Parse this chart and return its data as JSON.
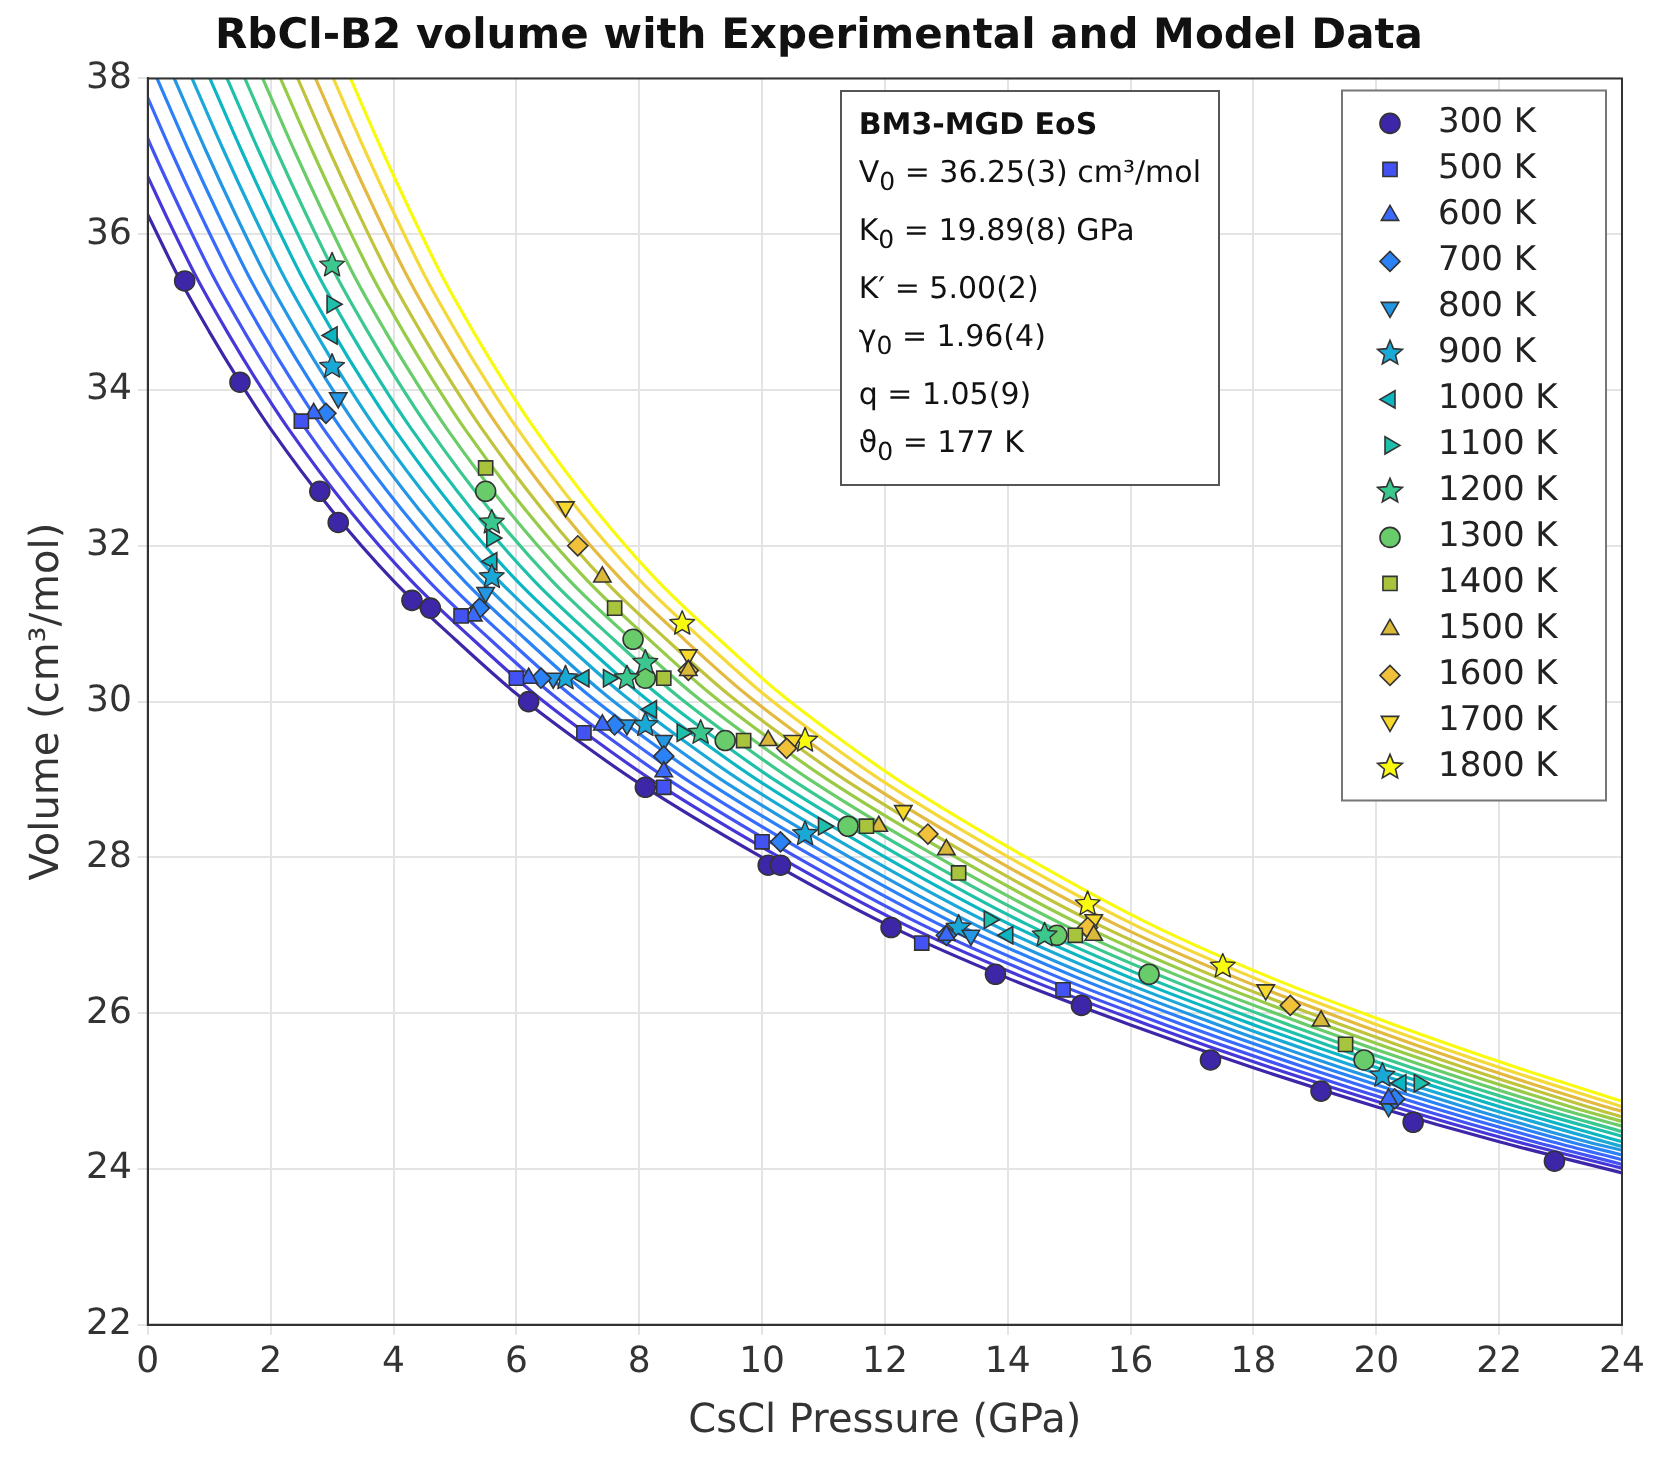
{
  "chart_data": {
    "type": "scatter",
    "title": "RbCl-B2 volume with Experimental and Model Data",
    "xlabel": "CsCl Pressure (GPa)",
    "ylabel": "Volume (cm³/mol)",
    "xlim": [
      0,
      24
    ],
    "ylim": [
      22,
      38
    ],
    "xticks": [
      0,
      2,
      4,
      6,
      8,
      10,
      12,
      14,
      16,
      18,
      20,
      22,
      24
    ],
    "yticks": [
      22,
      24,
      26,
      28,
      30,
      32,
      34,
      36,
      38
    ],
    "grid": true,
    "legend": "top right",
    "annotations": [
      "BM3-MGD EoS",
      "V$_{0}$ = 36.25(3) cm³/mol",
      "K$_{0}$ = 19.89(8) GPa",
      "K′ = 5.00(2)",
      "γ$_{0}$ = 1.96(4)",
      "q = 1.05(9)",
      "ϑ$_{0}$ = 177 K"
    ],
    "series": [
      {
        "type": "line",
        "marker": "none",
        "color": "#3e26a8",
        "x": [
          0,
          0.5,
          1,
          1.5,
          2,
          3,
          4,
          5,
          6,
          7,
          8,
          10,
          12,
          14,
          16,
          18,
          20,
          22,
          24
        ],
        "values": [
          36.25,
          35.45,
          34.75,
          34.1,
          33.5,
          32.45,
          31.55,
          30.8,
          30.1,
          29.5,
          28.95,
          28.0,
          27.15,
          26.45,
          25.85,
          25.3,
          24.8,
          24.35,
          23.95
        ]
      },
      {
        "type": "line",
        "marker": "none",
        "color": "#4638d8",
        "x": [
          0,
          0.29,
          0.79,
          1.29,
          1.79,
          2.29,
          3.29,
          4.29,
          5.29,
          6.29,
          7.29,
          8.29,
          10.29,
          12.29,
          14.29,
          16.29,
          18.29,
          20.29,
          22.29,
          24
        ],
        "values": [
          36.74,
          36.25,
          35.45,
          34.75,
          34.1,
          33.5,
          32.45,
          31.55,
          30.8,
          30.1,
          29.5,
          28.95,
          28.0,
          27.15,
          26.45,
          25.85,
          25.3,
          24.8,
          24.35,
          24.01
        ]
      },
      {
        "type": "line",
        "marker": "none",
        "color": "#4352f3",
        "x": [
          0,
          0.07,
          0.57,
          1.07,
          1.57,
          2.07,
          2.57,
          3.57,
          4.57,
          5.57,
          6.57,
          7.57,
          8.57,
          10.57,
          12.57,
          14.57,
          16.57,
          18.57,
          20.57,
          22.57,
          24
        ],
        "values": [
          37.23,
          37.1,
          36.25,
          35.45,
          34.75,
          34.1,
          33.5,
          32.45,
          31.55,
          30.8,
          30.1,
          29.5,
          28.95,
          28.0,
          27.15,
          26.45,
          25.85,
          25.3,
          24.8,
          24.35,
          24.06
        ]
      },
      {
        "type": "line",
        "marker": "none",
        "color": "#3a6afd",
        "x": [
          0,
          0.36,
          0.86,
          1.36,
          1.86,
          2.36,
          2.86,
          3.86,
          4.86,
          5.86,
          6.86,
          7.86,
          8.86,
          10.86,
          12.86,
          14.86,
          16.86,
          18.86,
          20.86,
          22.86,
          24
        ],
        "values": [
          37.75,
          37.1,
          36.25,
          35.45,
          34.75,
          34.1,
          33.5,
          32.45,
          31.55,
          30.8,
          30.1,
          29.5,
          28.95,
          28.0,
          27.15,
          26.45,
          25.85,
          25.3,
          24.8,
          24.35,
          24.12
        ]
      },
      {
        "type": "line",
        "marker": "none",
        "color": "#2b82f6",
        "x": [
          0.15,
          0.65,
          1.15,
          1.65,
          2.15,
          2.65,
          3.15,
          4.15,
          5.15,
          6.15,
          7.15,
          8.15,
          9.15,
          11.15,
          13.15,
          15.15,
          17.15,
          19.15,
          21.15,
          23.15,
          24
        ],
        "values": [
          38.0,
          37.1,
          36.25,
          35.45,
          34.75,
          34.1,
          33.5,
          32.45,
          31.55,
          30.8,
          30.1,
          29.5,
          28.95,
          28.0,
          27.15,
          26.45,
          25.85,
          25.3,
          24.8,
          24.35,
          24.18
        ]
      },
      {
        "type": "line",
        "marker": "none",
        "color": "#2397e3",
        "x": [
          0.43,
          0.93,
          1.43,
          1.93,
          2.43,
          2.93,
          3.43,
          4.43,
          5.43,
          6.43,
          7.43,
          8.43,
          9.43,
          11.43,
          13.43,
          15.43,
          17.43,
          19.43,
          21.43,
          23.43,
          24
        ],
        "values": [
          38.0,
          37.1,
          36.25,
          35.45,
          34.75,
          34.1,
          33.5,
          32.45,
          31.55,
          30.8,
          30.1,
          29.5,
          28.95,
          28.0,
          27.15,
          26.45,
          25.85,
          25.3,
          24.8,
          24.35,
          24.24
        ]
      },
      {
        "type": "line",
        "marker": "none",
        "color": "#1aa9d6",
        "x": [
          0.72,
          1.22,
          1.72,
          2.22,
          2.72,
          3.22,
          3.72,
          4.72,
          5.72,
          6.72,
          7.72,
          8.72,
          9.72,
          11.72,
          13.72,
          15.72,
          17.72,
          19.72,
          21.72,
          23.72,
          24
        ],
        "values": [
          38.0,
          37.1,
          36.25,
          35.45,
          34.75,
          34.1,
          33.5,
          32.45,
          31.55,
          30.8,
          30.1,
          29.5,
          28.95,
          28.0,
          27.15,
          26.45,
          25.85,
          25.3,
          24.8,
          24.35,
          24.29
        ]
      },
      {
        "type": "line",
        "marker": "none",
        "color": "#0bb6c2",
        "x": [
          1.01,
          1.51,
          2.01,
          2.51,
          3.01,
          3.51,
          4.01,
          5.01,
          6.01,
          7.01,
          8.01,
          9.01,
          10.01,
          12.01,
          14.01,
          16.01,
          18.01,
          20.01,
          22.01,
          24
        ],
        "values": [
          38.0,
          37.1,
          36.25,
          35.45,
          34.75,
          34.1,
          33.5,
          32.45,
          31.55,
          30.8,
          30.1,
          29.5,
          28.95,
          28.0,
          27.15,
          26.45,
          25.85,
          25.3,
          24.8,
          24.35
        ]
      },
      {
        "type": "line",
        "marker": "none",
        "color": "#1ec0ac",
        "x": [
          1.29,
          1.79,
          2.29,
          2.79,
          3.29,
          3.79,
          4.29,
          5.29,
          6.29,
          7.29,
          8.29,
          9.29,
          10.29,
          12.29,
          14.29,
          16.29,
          18.29,
          20.29,
          22.29,
          24
        ],
        "values": [
          38.0,
          37.1,
          36.25,
          35.45,
          34.75,
          34.1,
          33.5,
          32.45,
          31.55,
          30.8,
          30.1,
          29.5,
          28.95,
          28.0,
          27.15,
          26.45,
          25.85,
          25.3,
          24.8,
          24.42
        ]
      },
      {
        "type": "line",
        "marker": "none",
        "color": "#3bc88f",
        "x": [
          1.58,
          2.08,
          2.58,
          3.08,
          3.58,
          4.08,
          4.58,
          5.58,
          6.58,
          7.58,
          8.58,
          9.58,
          10.58,
          12.58,
          14.58,
          16.58,
          18.58,
          20.58,
          22.58,
          24
        ],
        "values": [
          38.0,
          37.1,
          36.25,
          35.45,
          34.75,
          34.1,
          33.5,
          32.45,
          31.55,
          30.8,
          30.1,
          29.5,
          28.95,
          28.0,
          27.15,
          26.45,
          25.85,
          25.3,
          24.8,
          24.48
        ]
      },
      {
        "type": "line",
        "marker": "none",
        "color": "#68cc6a",
        "x": [
          1.87,
          2.37,
          2.87,
          3.37,
          3.87,
          4.37,
          4.87,
          5.87,
          6.87,
          7.87,
          8.87,
          9.87,
          10.87,
          12.87,
          14.87,
          16.87,
          18.87,
          20.87,
          22.87,
          24
        ],
        "values": [
          38.0,
          37.1,
          36.25,
          35.45,
          34.75,
          34.1,
          33.5,
          32.45,
          31.55,
          30.8,
          30.1,
          29.5,
          28.95,
          28.0,
          27.15,
          26.45,
          25.85,
          25.3,
          24.8,
          24.55
        ]
      },
      {
        "type": "line",
        "marker": "none",
        "color": "#96cb47",
        "x": [
          2.16,
          2.66,
          3.16,
          3.66,
          4.16,
          4.66,
          5.16,
          6.16,
          7.16,
          8.16,
          9.16,
          10.16,
          11.16,
          13.16,
          15.16,
          17.16,
          19.16,
          21.16,
          23.16,
          24
        ],
        "values": [
          38.0,
          37.1,
          36.25,
          35.45,
          34.75,
          34.1,
          33.5,
          32.45,
          31.55,
          30.8,
          30.1,
          29.5,
          28.95,
          28.0,
          27.15,
          26.45,
          25.85,
          25.3,
          24.8,
          24.61
        ]
      },
      {
        "type": "line",
        "marker": "none",
        "color": "#c0c33c",
        "x": [
          2.44,
          2.94,
          3.44,
          3.94,
          4.44,
          4.94,
          5.44,
          6.44,
          7.44,
          8.44,
          9.44,
          10.44,
          11.44,
          13.44,
          15.44,
          17.44,
          19.44,
          21.44,
          23.44,
          24
        ],
        "values": [
          38.0,
          37.1,
          36.25,
          35.45,
          34.75,
          34.1,
          33.5,
          32.45,
          31.55,
          30.8,
          30.1,
          29.5,
          28.95,
          28.0,
          27.15,
          26.45,
          25.85,
          25.3,
          24.8,
          24.67
        ]
      },
      {
        "type": "line",
        "marker": "none",
        "color": "#e3ba3f",
        "x": [
          2.73,
          3.23,
          3.73,
          4.23,
          4.73,
          5.23,
          5.73,
          6.73,
          7.73,
          8.73,
          9.73,
          10.73,
          11.73,
          13.73,
          15.73,
          17.73,
          19.73,
          21.73,
          23.73,
          24
        ],
        "values": [
          38.0,
          37.1,
          36.25,
          35.45,
          34.75,
          34.1,
          33.5,
          32.45,
          31.55,
          30.8,
          30.1,
          29.5,
          28.95,
          28.0,
          27.15,
          26.45,
          25.85,
          25.3,
          24.8,
          24.74
        ]
      },
      {
        "type": "line",
        "marker": "none",
        "color": "#f5d93a",
        "x": [
          3.02,
          3.52,
          4.02,
          4.52,
          5.02,
          5.52,
          6.02,
          7.02,
          8.02,
          9.02,
          10.02,
          11.02,
          12.02,
          14.02,
          16.02,
          18.02,
          20.02,
          22.02,
          24
        ],
        "values": [
          38.0,
          37.1,
          36.25,
          35.45,
          34.75,
          34.1,
          33.5,
          32.45,
          31.55,
          30.8,
          30.1,
          29.5,
          28.95,
          28.0,
          27.15,
          26.45,
          25.85,
          25.3,
          24.8
        ]
      },
      {
        "type": "line",
        "marker": "none",
        "color": "#f9fb0e",
        "x": [
          3.3,
          3.8,
          4.3,
          4.8,
          5.3,
          5.8,
          6.3,
          7.3,
          8.3,
          9.3,
          10.3,
          11.3,
          12.3,
          14.3,
          16.3,
          18.3,
          20.3,
          22.3,
          24
        ],
        "values": [
          38.0,
          37.1,
          36.25,
          35.45,
          34.75,
          34.1,
          33.5,
          32.45,
          31.55,
          30.8,
          30.1,
          29.5,
          28.95,
          28.0,
          27.15,
          26.45,
          25.85,
          25.3,
          24.87
        ]
      },
      {
        "type": "scatter",
        "name": "300 K",
        "marker": "circle",
        "color": "#3e26a8",
        "x": [
          0.6,
          1.5,
          2.8,
          3.1,
          4.3,
          4.6,
          6.2,
          8.1,
          10.1,
          10.3,
          12.1,
          13.8,
          15.2,
          17.3,
          19.1,
          20.6,
          22.9
        ],
        "values": [
          35.4,
          34.1,
          32.7,
          32.3,
          31.3,
          31.2,
          30.0,
          28.9,
          27.9,
          27.9,
          27.1,
          26.5,
          26.1,
          25.4,
          25.0,
          24.6,
          24.1
        ]
      },
      {
        "type": "scatter",
        "name": "500 K",
        "marker": "square",
        "color": "#4352f3",
        "x": [
          2.5,
          5.1,
          6.0,
          7.1,
          8.4,
          10.0,
          12.6,
          14.9
        ],
        "values": [
          33.6,
          31.1,
          30.3,
          29.6,
          28.9,
          28.2,
          26.9,
          26.3
        ]
      },
      {
        "type": "scatter",
        "name": "600 K",
        "marker": "triangle",
        "color": "#3a6afd",
        "x": [
          2.7,
          5.3,
          6.2,
          7.4,
          8.4,
          13.0,
          20.2
        ],
        "values": [
          33.7,
          31.1,
          30.3,
          29.7,
          29.1,
          27.0,
          24.9
        ]
      },
      {
        "type": "scatter",
        "name": "700 K",
        "marker": "diamond",
        "color": "#2b82f6",
        "x": [
          2.9,
          5.4,
          6.4,
          7.6,
          8.4,
          10.3,
          13.0,
          20.3
        ],
        "values": [
          33.7,
          31.2,
          30.3,
          29.7,
          29.3,
          28.2,
          27.0,
          24.9
        ]
      },
      {
        "type": "scatter",
        "name": "800 K",
        "marker": "triangle-down",
        "color": "#2397e3",
        "x": [
          3.1,
          5.5,
          6.6,
          7.8,
          8.4,
          13.4,
          20.2
        ],
        "values": [
          33.9,
          31.4,
          30.3,
          29.7,
          29.5,
          27.0,
          24.8
        ]
      },
      {
        "type": "scatter",
        "name": "900 K",
        "marker": "star",
        "color": "#1aa9d6",
        "x": [
          3.0,
          5.6,
          6.8,
          8.1,
          10.7,
          13.2,
          20.1
        ],
        "values": [
          34.3,
          31.6,
          30.3,
          29.7,
          28.3,
          27.1,
          25.2
        ]
      },
      {
        "type": "scatter",
        "name": "1000 K",
        "marker": "triangle-left",
        "color": "#0bb6c2",
        "x": [
          3.0,
          5.6,
          7.1,
          8.2,
          14.0,
          20.4
        ],
        "values": [
          34.7,
          31.8,
          30.3,
          29.9,
          27.0,
          25.1
        ]
      },
      {
        "type": "scatter",
        "name": "1100 K",
        "marker": "triangle-right",
        "color": "#1ec0ac",
        "x": [
          3.0,
          5.6,
          7.5,
          8.7,
          11.0,
          13.7,
          20.7
        ],
        "values": [
          35.1,
          32.1,
          30.3,
          29.6,
          28.4,
          27.2,
          25.1
        ]
      },
      {
        "type": "scatter",
        "name": "1200 K",
        "marker": "star",
        "color": "#3bc88f",
        "x": [
          3.0,
          5.6,
          7.8,
          8.1,
          9.0,
          14.6
        ],
        "values": [
          35.6,
          32.3,
          30.3,
          30.5,
          29.6,
          27.0
        ]
      },
      {
        "type": "scatter",
        "name": "1300 K",
        "marker": "circle",
        "color": "#68cc6a",
        "x": [
          5.5,
          7.9,
          8.1,
          9.4,
          11.4,
          14.8,
          16.3,
          19.8
        ],
        "values": [
          32.7,
          30.8,
          30.3,
          29.5,
          28.4,
          27.0,
          26.5,
          25.4
        ]
      },
      {
        "type": "scatter",
        "name": "1400 K",
        "marker": "square",
        "color": "#a8c43c",
        "x": [
          5.5,
          7.6,
          8.4,
          9.7,
          11.7,
          13.2,
          15.1,
          19.5
        ],
        "values": [
          33.0,
          31.2,
          30.3,
          29.5,
          28.4,
          27.8,
          27.0,
          25.6
        ]
      },
      {
        "type": "scatter",
        "name": "1500 K",
        "marker": "triangle",
        "color": "#d9b83a",
        "x": [
          7.4,
          8.8,
          10.1,
          11.9,
          13.0,
          15.4,
          19.1
        ],
        "values": [
          31.6,
          30.4,
          29.5,
          28.4,
          28.1,
          27.0,
          25.9
        ]
      },
      {
        "type": "scatter",
        "name": "1600 K",
        "marker": "diamond",
        "color": "#f2c13a",
        "x": [
          7.0,
          8.8,
          10.4,
          12.7,
          15.3,
          18.6
        ],
        "values": [
          32.0,
          30.4,
          29.4,
          28.3,
          27.1,
          26.1
        ]
      },
      {
        "type": "scatter",
        "name": "1700 K",
        "marker": "triangle-down",
        "color": "#f6d92c",
        "x": [
          6.8,
          8.8,
          10.5,
          12.3,
          15.4,
          18.2
        ],
        "values": [
          32.5,
          30.6,
          29.5,
          28.6,
          27.2,
          26.3
        ]
      },
      {
        "type": "scatter",
        "name": "1800 K",
        "marker": "star",
        "color": "#f9fb0e",
        "x": [
          8.7,
          10.7,
          15.3,
          17.5
        ],
        "values": [
          31.0,
          29.5,
          27.4,
          26.6
        ]
      }
    ]
  }
}
